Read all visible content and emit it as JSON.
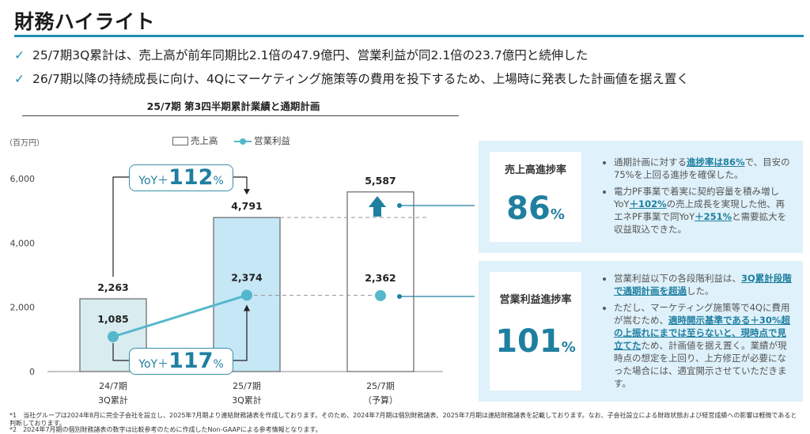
{
  "header": {
    "title": "財務ハイライト",
    "bullets": [
      "25/7期3Q累計は、売上高が前年同期比2.1倍の47.9億円、営業利益が同2.1倍の23.7億円と続伸した",
      "26/7期以降の持続成長に向け、4Qにマーケティング施策等の費用を投下するため、上場時に発表した計画値を据え置く"
    ]
  },
  "chart_title": "25/7期 第3四半期累計業績と通期計画",
  "chart_data": {
    "type": "bar",
    "unit_label": "（百万円）",
    "categories": [
      {
        "line1": "24/7期",
        "line2": "3Q累計"
      },
      {
        "line1": "25/7期",
        "line2": "3Q累計"
      },
      {
        "line1": "25/7期",
        "line2": "（予算）"
      }
    ],
    "series": [
      {
        "name": "売上高",
        "values": [
          2263,
          4791,
          5587
        ],
        "labels": [
          "2,263",
          "4,791",
          "5,587"
        ]
      },
      {
        "name": "営業利益",
        "values": [
          1085,
          2374,
          2362
        ],
        "labels": [
          "1,085",
          "2,374",
          "2,362"
        ]
      }
    ],
    "ylim": [
      0,
      6500
    ],
    "yticks": [
      0,
      2000,
      4000,
      6000
    ],
    "ytick_labels": [
      "0",
      "2,000",
      "4,000",
      "6,000"
    ],
    "legend": {
      "sales": "売上高",
      "op": "営業利益",
      "placement": "top"
    },
    "annotations": {
      "sales_yoy": {
        "prefix": "YoY＋",
        "value": "112",
        "suffix": "%"
      },
      "op_yoy": {
        "prefix": "YoY＋",
        "value": "117",
        "suffix": "%"
      }
    },
    "colors": {
      "bar_prev": "#d9ecf0",
      "bar_curr": "#c5e7f6",
      "bar_border": "#666666",
      "line": "#55b7cc",
      "accent": "#1f7fa0"
    }
  },
  "panels": {
    "sales": {
      "label": "売上高進捗率",
      "value": "86",
      "unit": "%",
      "bullet1": {
        "a": "通期計画に対する",
        "b": "進捗率は86%",
        "c": "で、目安の75%を上回る進捗を確保した。"
      },
      "bullet2": {
        "a": "電力PF事業で着実に契約容量を積み増しYoY",
        "b": "＋102%",
        "c": "の売上成長を実現した他、再エネPF事業で同YoY",
        "d": "＋251%",
        "e": "と需要拡大を収益取込できた。"
      }
    },
    "op": {
      "label": "営業利益進捗率",
      "value": "101",
      "unit": "%",
      "bullet1": {
        "a": "営業利益以下の各段階利益は、",
        "b": "3Q累計段階で通期計画を超過",
        "c": "した。"
      },
      "bullet2": {
        "a": "ただし、マーケティング施策等で4Qに費用が嵩むため、",
        "b": "適時開示基準である＋30%超の上振れにまでは至らないと、現時点で見立てた",
        "c": "ため、計画値を据え置く。業績が現時点の想定を上回り、上方修正が必要になった場合には、適宜開示させていただきます。"
      }
    }
  },
  "footnotes": [
    "*1　当社グループは2024年8月に完全子会社を設立し、2025年7月期より連結財務諸表を作成しております。そのため、2024年7月期は個別財務諸表、2025年7月期は連結財務諸表を記載しております。なお、子会社設立による財政状態および経営成績への影響は軽微であると判断しております。",
    "*2　2024年7月期の個別財務諸表の数字は比較参考のために作成したNon-GAAPによる参考情報となります。"
  ]
}
